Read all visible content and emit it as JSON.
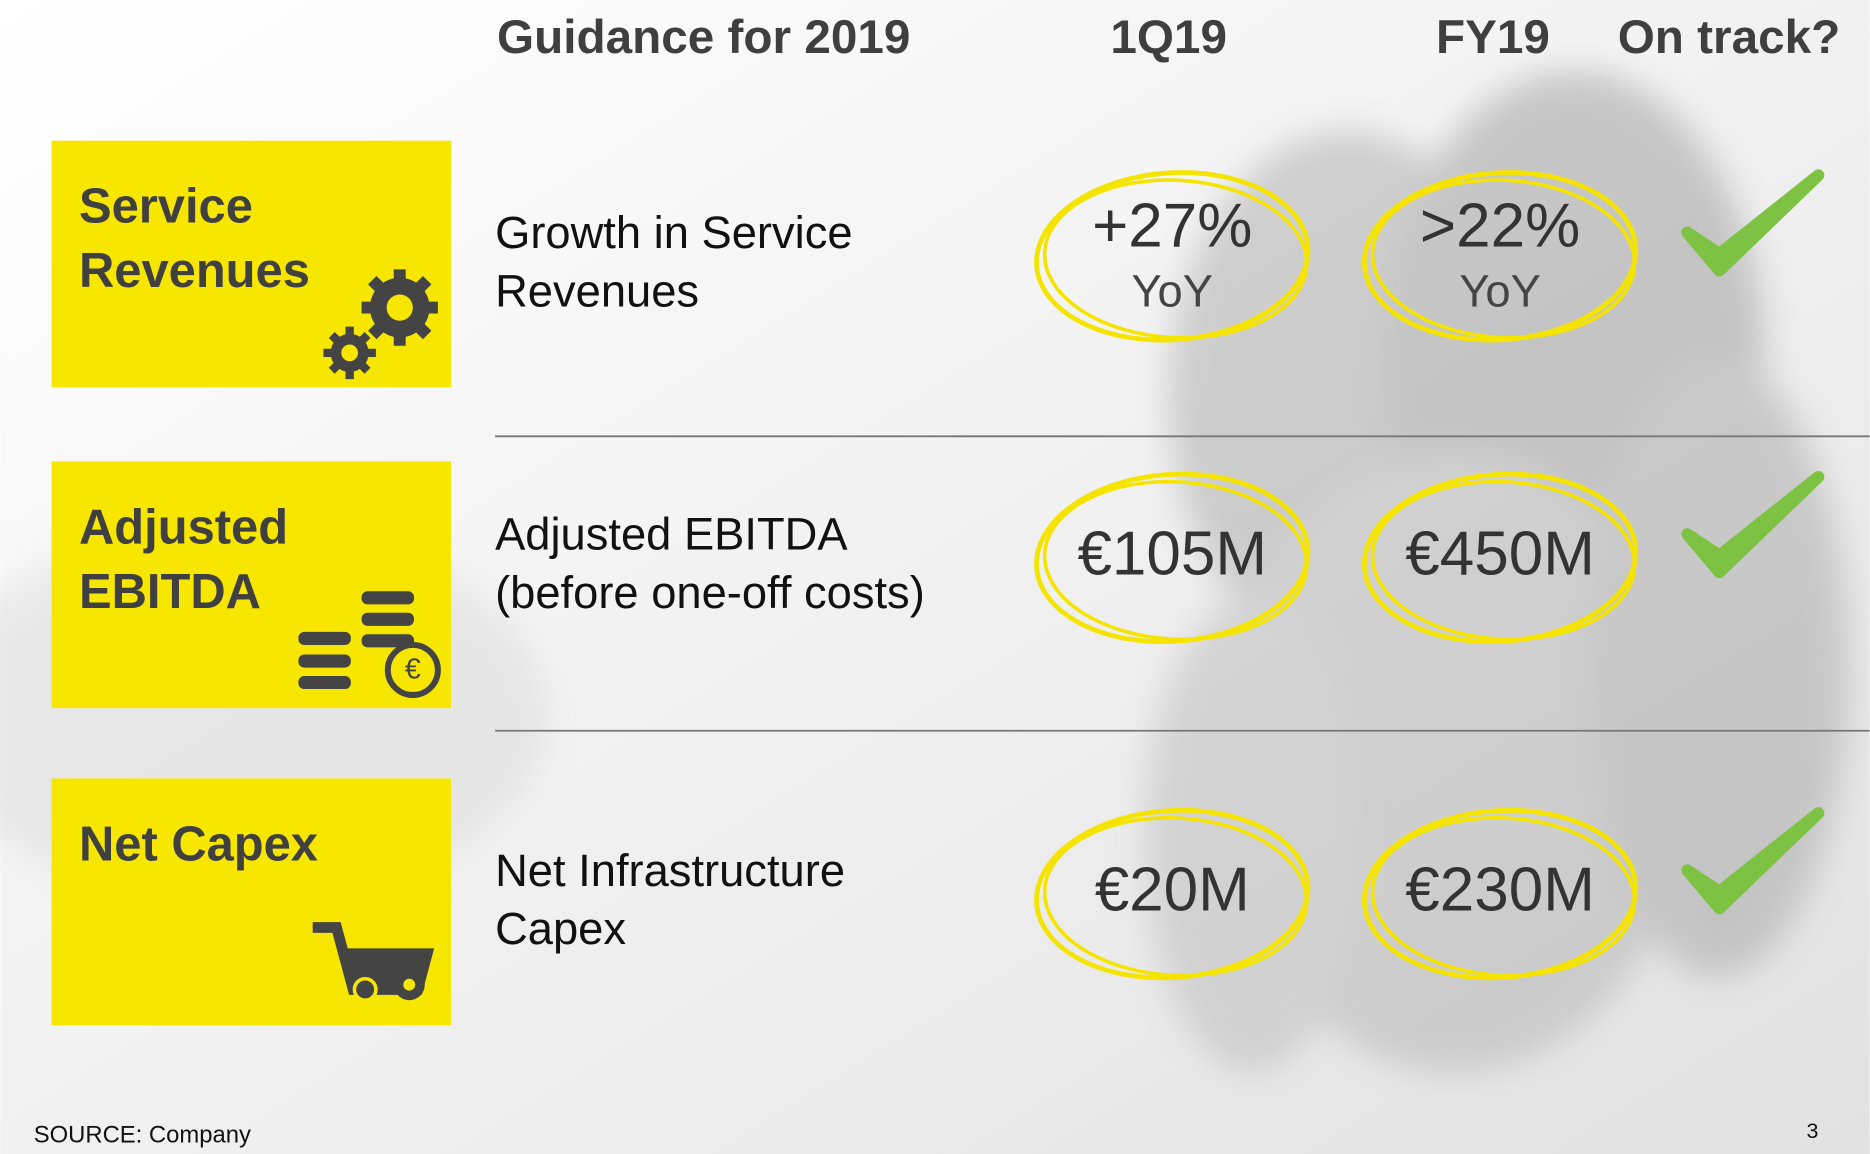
{
  "header": {
    "columns": [
      "Guidance for 2019",
      "1Q19",
      "FY19",
      "On track?"
    ]
  },
  "rows": [
    {
      "category": [
        "Service",
        "Revenues"
      ],
      "description": [
        "Growth in Service",
        "Revenues"
      ],
      "q1": {
        "value": "+27%",
        "sub": "YoY"
      },
      "fy": {
        "value": ">22%",
        "sub": "YoY"
      }
    },
    {
      "category": [
        "Adjusted",
        "EBITDA"
      ],
      "description": [
        "Adjusted EBITDA",
        "(before one-off costs)"
      ],
      "q1": {
        "value": "€105M"
      },
      "fy": {
        "value": "€450M"
      }
    },
    {
      "category": [
        "Net Capex"
      ],
      "description": [
        "Net Infrastructure",
        "Capex"
      ],
      "q1": {
        "value": "€20M"
      },
      "fy": {
        "value": "€230M"
      }
    }
  ],
  "footer": {
    "source": "SOURCE: Company",
    "page": "3"
  }
}
